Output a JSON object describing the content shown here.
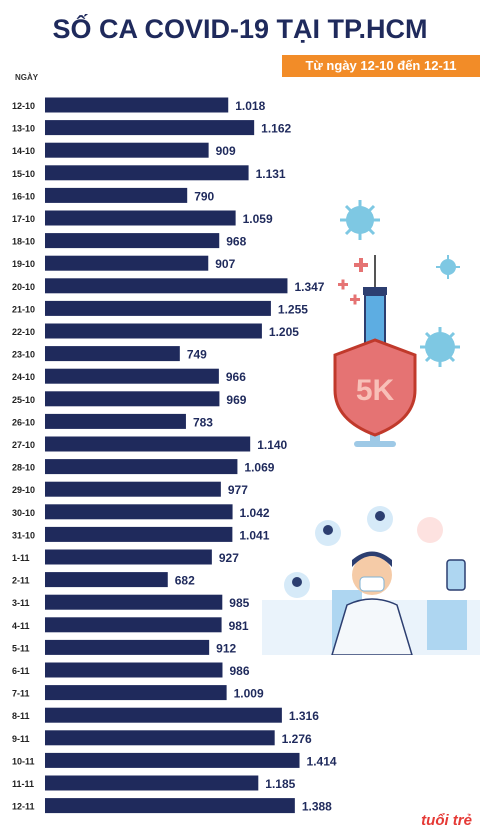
{
  "title": "SỐ CA COVID-19 TẠI TP.HCM",
  "subtitle": "Từ ngày 12-10 đến 12-11",
  "logo": "tuổi trẻ",
  "colors": {
    "bar": "#1f2a5c",
    "accent": "#f28c28",
    "shield": "#e57373",
    "virus": "#7ec8e3"
  },
  "badge_text": "5K",
  "chart_data": {
    "type": "bar",
    "orientation": "horizontal",
    "ylabel": "NGÀY",
    "categories": [
      "12-10",
      "13-10",
      "14-10",
      "15-10",
      "16-10",
      "17-10",
      "18-10",
      "19-10",
      "20-10",
      "21-10",
      "22-10",
      "23-10",
      "24-10",
      "25-10",
      "26-10",
      "27-10",
      "28-10",
      "29-10",
      "30-10",
      "31-10",
      "1-11",
      "2-11",
      "3-11",
      "4-11",
      "5-11",
      "6-11",
      "7-11",
      "8-11",
      "9-11",
      "10-11",
      "11-11",
      "12-11"
    ],
    "values": [
      1018,
      1162,
      909,
      1131,
      790,
      1059,
      968,
      907,
      1347,
      1255,
      1205,
      749,
      966,
      969,
      783,
      1140,
      1069,
      977,
      1042,
      1041,
      927,
      682,
      985,
      981,
      912,
      986,
      1009,
      1316,
      1276,
      1414,
      1185,
      1388
    ],
    "value_labels": [
      "1.018",
      "1.162",
      "909",
      "1.131",
      "790",
      "1.059",
      "968",
      "907",
      "1.347",
      "1.255",
      "1.205",
      "749",
      "966",
      "969",
      "783",
      "1.140",
      "1.069",
      "977",
      "1.042",
      "1.041",
      "927",
      "682",
      "985",
      "981",
      "912",
      "986",
      "1.009",
      "1.316",
      "1.276",
      "1.414",
      "1.185",
      "1.388"
    ]
  }
}
